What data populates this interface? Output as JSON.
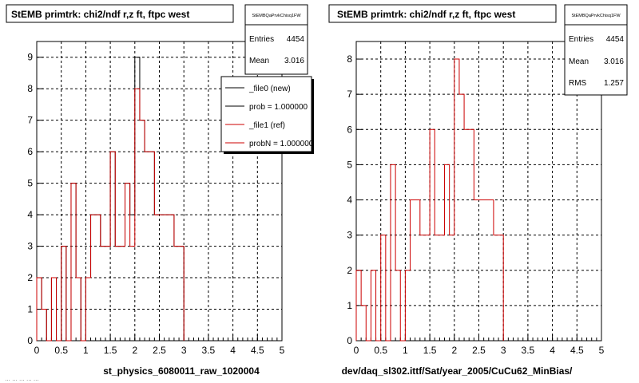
{
  "page": {
    "left_caption": "st_physics_6080011_raw_1020004",
    "right_caption": "dev/daq_sl302.ittf/Sat/year_2005/CuCu62_MinBias/",
    "corner_text": "… … … … …"
  },
  "left_panel": {
    "title": "StEMB primtrk: chi2/ndf r,z ft, ftpc west",
    "stats": {
      "name": "StEMBQaPrvkChisq1FW",
      "rows": [
        {
          "label": "Entries",
          "value": "4454"
        },
        {
          "label": "Mean",
          "value": "3.016"
        }
      ]
    },
    "legend": [
      {
        "label": "_file0 (new)",
        "color": "#000000"
      },
      {
        "label": "prob = 1.000000",
        "color": "#000000"
      },
      {
        "label": "_file1 (ref)",
        "color": "#cc0000"
      },
      {
        "label": "probN = 1.000000",
        "color": "#cc0000"
      }
    ]
  },
  "right_panel": {
    "title": "StEMB primtrk: chi2/ndf r,z ft, ftpc west",
    "stats": {
      "name": "StEMBQaPrvkChisq1FW",
      "rows": [
        {
          "label": "Entries",
          "value": "4454"
        },
        {
          "label": "Mean",
          "value": "3.016"
        },
        {
          "label": "RMS",
          "value": "1.257"
        }
      ]
    }
  },
  "colors": {
    "new": "#000000",
    "ref": "#cc0000",
    "grid": "#000000"
  },
  "chart_data": [
    {
      "type": "histogram",
      "title": "StEMB primtrk: chi2/ndf r,z ft, ftpc west",
      "xlabel": "st_physics_6080011_raw_1020004",
      "xlim": [
        0,
        5
      ],
      "ylim": [
        0,
        9.5
      ],
      "xticks": [
        "0",
        "0.5",
        "1",
        "1.5",
        "2",
        "2.5",
        "3",
        "3.5",
        "4",
        "4.5",
        "5"
      ],
      "yticks": [
        "0",
        "1",
        "2",
        "3",
        "4",
        "5",
        "6",
        "7",
        "8",
        "9"
      ],
      "bin_width": 0.1,
      "series": [
        {
          "name": "_file0 (new)",
          "values": [
            2,
            1,
            0,
            2,
            0,
            3,
            0,
            5,
            2,
            0,
            2,
            4,
            4,
            3,
            3,
            6,
            3,
            3,
            5,
            4,
            9,
            7,
            6,
            6,
            4,
            4,
            4,
            4,
            3,
            3
          ]
        },
        {
          "name": "_file1 (ref)",
          "values": [
            2,
            1,
            0,
            2,
            0,
            3,
            0,
            5,
            2,
            0,
            2,
            4,
            4,
            3,
            3,
            6,
            3,
            3,
            5,
            3,
            8,
            7,
            6,
            6,
            4,
            4,
            4,
            4,
            3,
            3
          ]
        }
      ],
      "grid": true
    },
    {
      "type": "histogram",
      "title": "StEMB primtrk: chi2/ndf r,z ft, ftpc west",
      "xlabel": "dev/daq_sl302.ittf/Sat/year_2005/CuCu62_MinBias/",
      "xlim": [
        0,
        5
      ],
      "ylim": [
        0,
        8.5
      ],
      "xticks": [
        "0",
        "0.5",
        "1",
        "1.5",
        "2",
        "2.5",
        "3",
        "3.5",
        "4",
        "4.5",
        "5"
      ],
      "yticks": [
        "0",
        "1",
        "2",
        "3",
        "4",
        "5",
        "6",
        "7",
        "8"
      ],
      "bin_width": 0.1,
      "series": [
        {
          "name": "_file1 (ref)",
          "values": [
            2,
            1,
            0,
            2,
            0,
            3,
            0,
            5,
            2,
            0,
            2,
            4,
            4,
            3,
            3,
            6,
            3,
            3,
            5,
            3,
            8,
            7,
            6,
            6,
            4,
            4,
            4,
            4,
            3,
            3
          ]
        }
      ],
      "grid": true
    }
  ]
}
